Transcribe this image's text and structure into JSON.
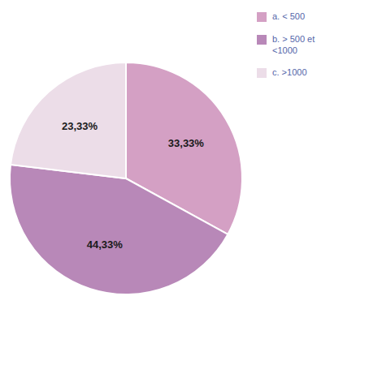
{
  "chart_data": {
    "type": "pie",
    "categories": [
      "a. < 500",
      "b. > 500 et\n<1000",
      "c. >1000"
    ],
    "values": [
      33.33,
      44.33,
      23.33
    ],
    "value_labels": [
      "33,33%",
      "44,33%",
      "23,33%"
    ],
    "colors": [
      "#d4a0c4",
      "#b888b8",
      "#ecdde8"
    ],
    "data_labels": true,
    "legend": "right"
  }
}
